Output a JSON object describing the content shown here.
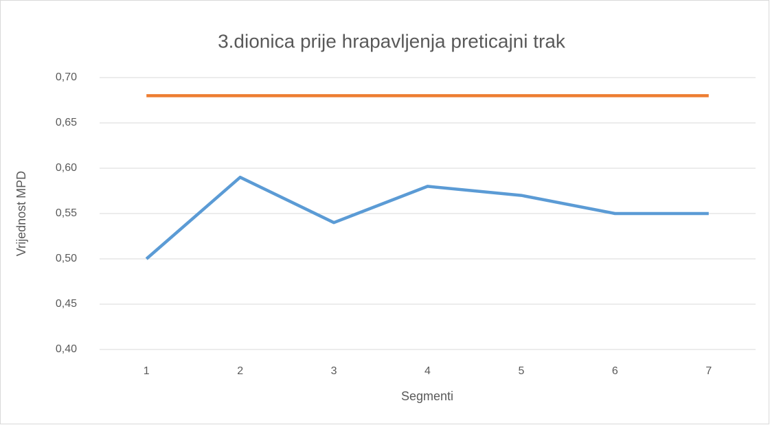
{
  "chart_data": {
    "type": "line",
    "title": "3.dionica prije hrapavljenja preticajni trak",
    "x_label": "Segmenti",
    "y_label": "Vrijednost MPD",
    "categories": [
      1,
      2,
      3,
      4,
      5,
      6,
      7
    ],
    "series": [
      {
        "color": "#5b9bd5",
        "values": [
          0.5,
          0.59,
          0.54,
          0.58,
          0.57,
          0.55,
          0.55
        ]
      },
      {
        "color": "#ed7d31",
        "values": [
          0.68,
          0.68,
          0.68,
          0.68,
          0.68,
          0.68,
          0.68
        ]
      }
    ],
    "ylim": [
      0.4,
      0.7
    ],
    "yticks": [
      {
        "value": 0.4,
        "label": "0,40"
      },
      {
        "value": 0.45,
        "label": "0,45"
      },
      {
        "value": 0.5,
        "label": "0,50"
      },
      {
        "value": 0.55,
        "label": "0,55"
      },
      {
        "value": 0.6,
        "label": "0,60"
      },
      {
        "value": 0.65,
        "label": "0,65"
      },
      {
        "value": 0.7,
        "label": "0,70"
      }
    ],
    "grid": true
  }
}
